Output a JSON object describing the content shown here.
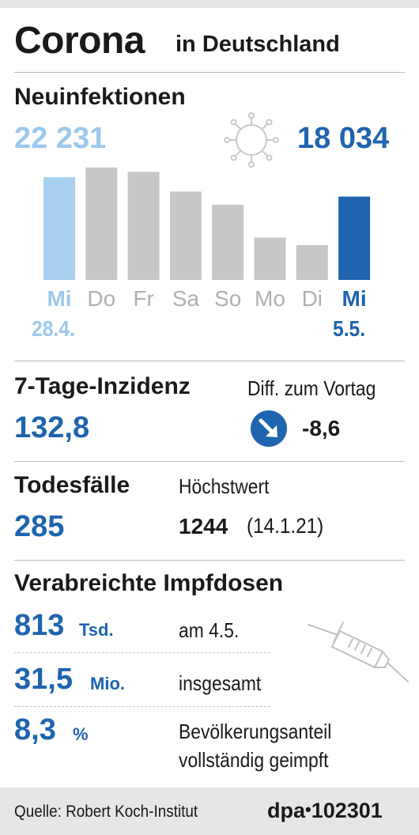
{
  "header": {
    "title": "Corona",
    "subtitle": "in Deutschland"
  },
  "infections": {
    "heading": "Neuinfektionen",
    "value_prev": "22 231",
    "value_curr": "18 034",
    "date_prev": "28.4.",
    "date_curr": "5.5.",
    "icon": "virus-icon"
  },
  "chart_data": {
    "type": "bar",
    "categories": [
      "Mi",
      "Do",
      "Fr",
      "Sa",
      "So",
      "Mo",
      "Di",
      "Mi"
    ],
    "values": [
      22231,
      24329,
      23392,
      19122,
      16290,
      9160,
      7534,
      18034
    ],
    "title": "Neuinfektionen",
    "xlabel": "",
    "ylabel": "",
    "ylim": [
      0,
      25500
    ],
    "grid": false,
    "bar_colors": [
      "#a8d0f0",
      "#c7c7c7",
      "#c7c7c7",
      "#c7c7c7",
      "#c7c7c7",
      "#c7c7c7",
      "#c7c7c7",
      "#1f64ae"
    ],
    "label_colors": [
      "#9cc8ec",
      "#b0b0b0",
      "#b0b0b0",
      "#b0b0b0",
      "#b0b0b0",
      "#b0b0b0",
      "#b0b0b0",
      "#1f64ae"
    ]
  },
  "incidence": {
    "heading": "7-Tage-Inzidenz",
    "value": "132,8",
    "diff_label": "Diff. zum Vortag",
    "diff_value": "-8,6",
    "icon": "arrow-down-right-icon"
  },
  "deaths": {
    "heading": "Todesfälle",
    "value": "285",
    "max_label": "Höchstwert",
    "max_value": "1244",
    "max_date": "(14.1.21)"
  },
  "vaccination": {
    "heading": "Verabreichte Impfdosen",
    "rows": [
      {
        "value": "813",
        "unit": "Tsd.",
        "desc": "am 4.5."
      },
      {
        "value": "31,5",
        "unit": "Mio.",
        "desc": "insgesamt"
      },
      {
        "value": "8,3",
        "unit": "%",
        "desc": "Bevölkerungsanteil",
        "desc2": "vollständig geimpft"
      }
    ],
    "icon": "syringe-icon"
  },
  "footer": {
    "source": "Quelle: Robert Koch-Institut",
    "agency": "dpa",
    "id": "102301"
  },
  "colors": {
    "accent_blue": "#1f64ae",
    "light_blue": "#9cc8ec",
    "bar_gray": "#c7c7c7",
    "background_gray": "#e6e6e6"
  }
}
